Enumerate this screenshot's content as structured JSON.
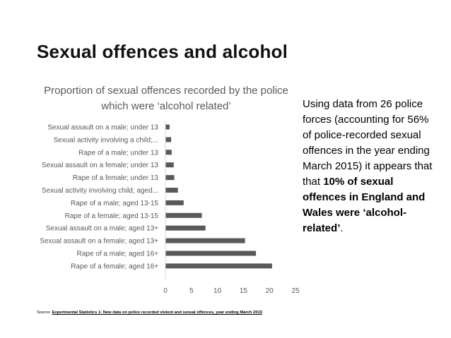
{
  "slide": {
    "title": "Sexual offences and alcohol"
  },
  "side_text": {
    "part1": "Using data from 26 police forces (accounting for 56% of police-recorded sexual offences in the year ending March 2015) it appears that that ",
    "bold": "10% of sexual offences in England and Wales were ‘alcohol-related’",
    "part2": "."
  },
  "source": {
    "prefix": "Source: ",
    "link": "Experimental Statistics 1: New data on police recorded violent and sexual offences, year ending March 2015"
  },
  "chart_data": {
    "type": "bar",
    "orientation": "horizontal",
    "title": "Proportion of sexual offences recorded by the police which were ‘alcohol related’",
    "categories": [
      "Sexual assault on a male; under 13",
      "Sexual activity involving a child;...",
      "Rape of a male; under 13",
      "Sexual assault on a female; under 13",
      "Rape of a female; under 13",
      "Sexual activity involving child; aged...",
      "Rape of a male; aged 13-15",
      "Rape of a female; aged 13-15",
      "Sexual assault on a male; aged 13+",
      "Sexual assault on a female; aged 13+",
      "Rape of a male; aged 16+",
      "Rape of a female; aged 16+"
    ],
    "values": [
      0.8,
      1.1,
      1.2,
      1.6,
      1.7,
      2.4,
      3.5,
      7.0,
      7.7,
      15.3,
      17.4,
      20.5
    ],
    "xlim": [
      0,
      25
    ],
    "xticks": [
      0,
      5,
      10,
      15,
      20,
      25
    ],
    "bar_color": "#595959",
    "grid": false,
    "legend": "none"
  }
}
